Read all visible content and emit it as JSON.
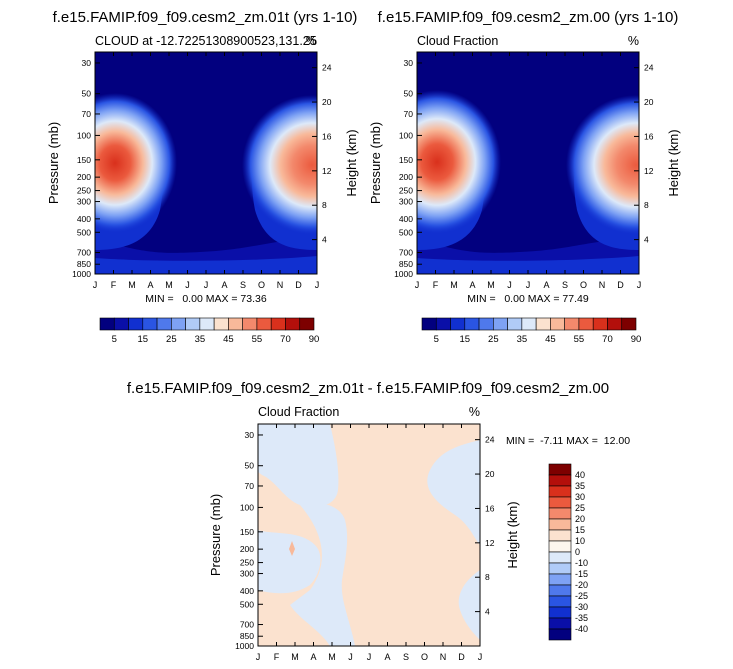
{
  "chart_data": [
    {
      "type": "heatmap",
      "title": "f.e15.FAMIP.f09_f09.cesm2_zm.01t (yrs 1-10)",
      "left_subtitle": "CLOUD at -12.72251308900523,131.25",
      "right_subtitle": "%",
      "ylabel": "Pressure (mb)",
      "y2label": "Height (km)",
      "x_ticks": [
        "J",
        "F",
        "M",
        "A",
        "M",
        "J",
        "J",
        "A",
        "S",
        "O",
        "N",
        "D",
        "J"
      ],
      "y_ticks": [
        30,
        50,
        70,
        100,
        150,
        200,
        250,
        300,
        400,
        500,
        700,
        850,
        1000
      ],
      "y2_ticks": [
        24,
        20,
        16,
        12,
        8,
        4
      ],
      "ylim": [
        1000,
        25
      ],
      "stats": "MIN =   0.00 MAX = 73.36",
      "max_value": 73.36
    },
    {
      "type": "heatmap",
      "title": "f.e15.FAMIP.f09_f09.cesm2_zm.00 (yrs 1-10)",
      "left_subtitle": "Cloud Fraction",
      "right_subtitle": "%",
      "ylabel": "Pressure (mb)",
      "y2label": "Height (km)",
      "x_ticks": [
        "J",
        "F",
        "M",
        "A",
        "M",
        "J",
        "J",
        "A",
        "S",
        "O",
        "N",
        "D",
        "J"
      ],
      "y_ticks": [
        30,
        50,
        70,
        100,
        150,
        200,
        250,
        300,
        400,
        500,
        700,
        850,
        1000
      ],
      "y2_ticks": [
        24,
        20,
        16,
        12,
        8,
        4
      ],
      "ylim": [
        1000,
        25
      ],
      "stats": "MIN =   0.00 MAX = 77.49",
      "max_value": 77.49
    },
    {
      "type": "heatmap",
      "title": "f.e15.FAMIP.f09_f09.cesm2_zm.01t - f.e15.FAMIP.f09_f09.cesm2_zm.00",
      "left_subtitle": "Cloud Fraction",
      "right_subtitle": "%",
      "ylabel": "Pressure (mb)",
      "y2label": "Height (km)",
      "x_ticks": [
        "J",
        "F",
        "M",
        "A",
        "M",
        "J",
        "J",
        "A",
        "S",
        "O",
        "N",
        "D",
        "J"
      ],
      "y_ticks": [
        30,
        50,
        70,
        100,
        150,
        200,
        250,
        300,
        400,
        500,
        700,
        850,
        1000
      ],
      "y2_ticks": [
        24,
        20,
        16,
        12,
        8,
        4
      ],
      "ylim": [
        1000,
        25
      ],
      "stats": "MIN =  -7.11 MAX =  12.00",
      "min_value": -7.11,
      "max_value": 12.0
    }
  ],
  "colorbar_abs": {
    "labels": [
      "5",
      "15",
      "25",
      "35",
      "45",
      "55",
      "70",
      "90"
    ],
    "colors": [
      "#02007f",
      "#0a0fa8",
      "#1130d0",
      "#2a55e3",
      "#4f79ec",
      "#7ea2f4",
      "#b0cbf7",
      "#dde9f9",
      "#fbe2cf",
      "#f8b99a",
      "#f3896c",
      "#eb5a3e",
      "#d9301c",
      "#b30f0b",
      "#7d0000"
    ]
  },
  "colorbar_diff": {
    "labels": [
      "40",
      "35",
      "30",
      "25",
      "20",
      "15",
      "10",
      "0",
      "-10",
      "-15",
      "-20",
      "-25",
      "-30",
      "-35",
      "-40"
    ],
    "colors": [
      "#7d0000",
      "#b30f0b",
      "#d9301c",
      "#eb5a3e",
      "#f3896c",
      "#f8b99a",
      "#fbe2cf",
      "#fdf6ee",
      "#dde9f9",
      "#b0cbf7",
      "#7ea2f4",
      "#4f79ec",
      "#2a55e3",
      "#1130d0",
      "#0a0fa8",
      "#02007f"
    ]
  }
}
